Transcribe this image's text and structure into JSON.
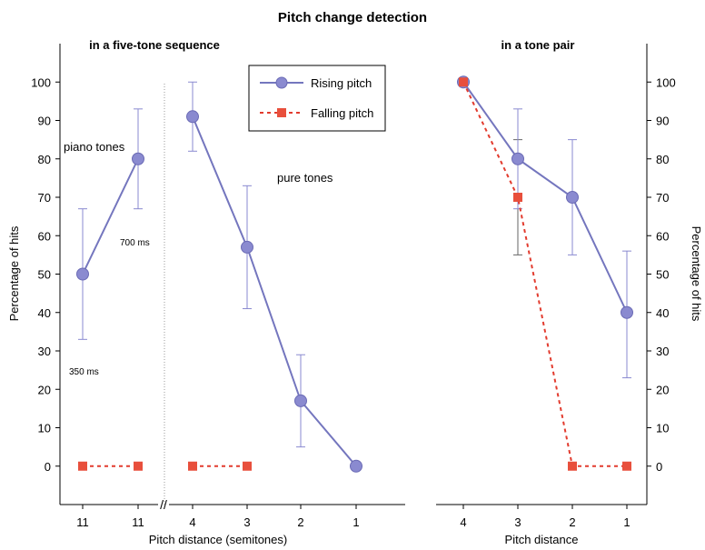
{
  "chart_data": {
    "type": "line",
    "title": "Pitch change detection",
    "ylim": [
      -10,
      110
    ],
    "yticks": [
      0,
      10,
      20,
      30,
      40,
      50,
      60,
      70,
      80,
      90,
      100
    ],
    "colors": {
      "rising": "#7476be",
      "falling": "#e23b2e",
      "rising_marker": "#8a8ad0",
      "falling_marker": "#e84f3c"
    },
    "legend": {
      "placement": "top-center",
      "rising": "Rising pitch",
      "falling": "Falling pitch"
    },
    "left_panel": {
      "subtitle": "in a five-tone sequence",
      "ylabel": "Percentage of hits",
      "xlabel": "Pitch distance (semitones)",
      "axis_break": "//",
      "piano": {
        "label": "piano tones",
        "note_350": "350 ms",
        "note_700": "700 ms",
        "categories": [
          "11",
          "11"
        ],
        "rising": [
          50,
          80
        ],
        "rising_err": [
          [
            33,
            67
          ],
          [
            67,
            93
          ]
        ],
        "falling": [
          0,
          0
        ]
      },
      "pure": {
        "label": "pure tones",
        "categories": [
          "4",
          "3",
          "2",
          "1"
        ],
        "rising": [
          91,
          57,
          17,
          0
        ],
        "rising_err": [
          [
            82,
            100
          ],
          [
            41,
            73
          ],
          [
            5,
            29
          ],
          null
        ],
        "falling": [
          0,
          0,
          null,
          null
        ]
      }
    },
    "right_panel": {
      "subtitle": "in a tone pair",
      "ylabel": "Percentage of hits",
      "xlabel": "Pitch distance",
      "categories": [
        "4",
        "3",
        "2",
        "1"
      ],
      "rising": [
        100,
        80,
        70,
        40
      ],
      "rising_err": [
        null,
        [
          67,
          93
        ],
        [
          55,
          85
        ],
        [
          23,
          56
        ]
      ],
      "falling": [
        100,
        70,
        0,
        0
      ],
      "falling_err": [
        null,
        [
          55,
          85
        ],
        null,
        null
      ]
    }
  }
}
